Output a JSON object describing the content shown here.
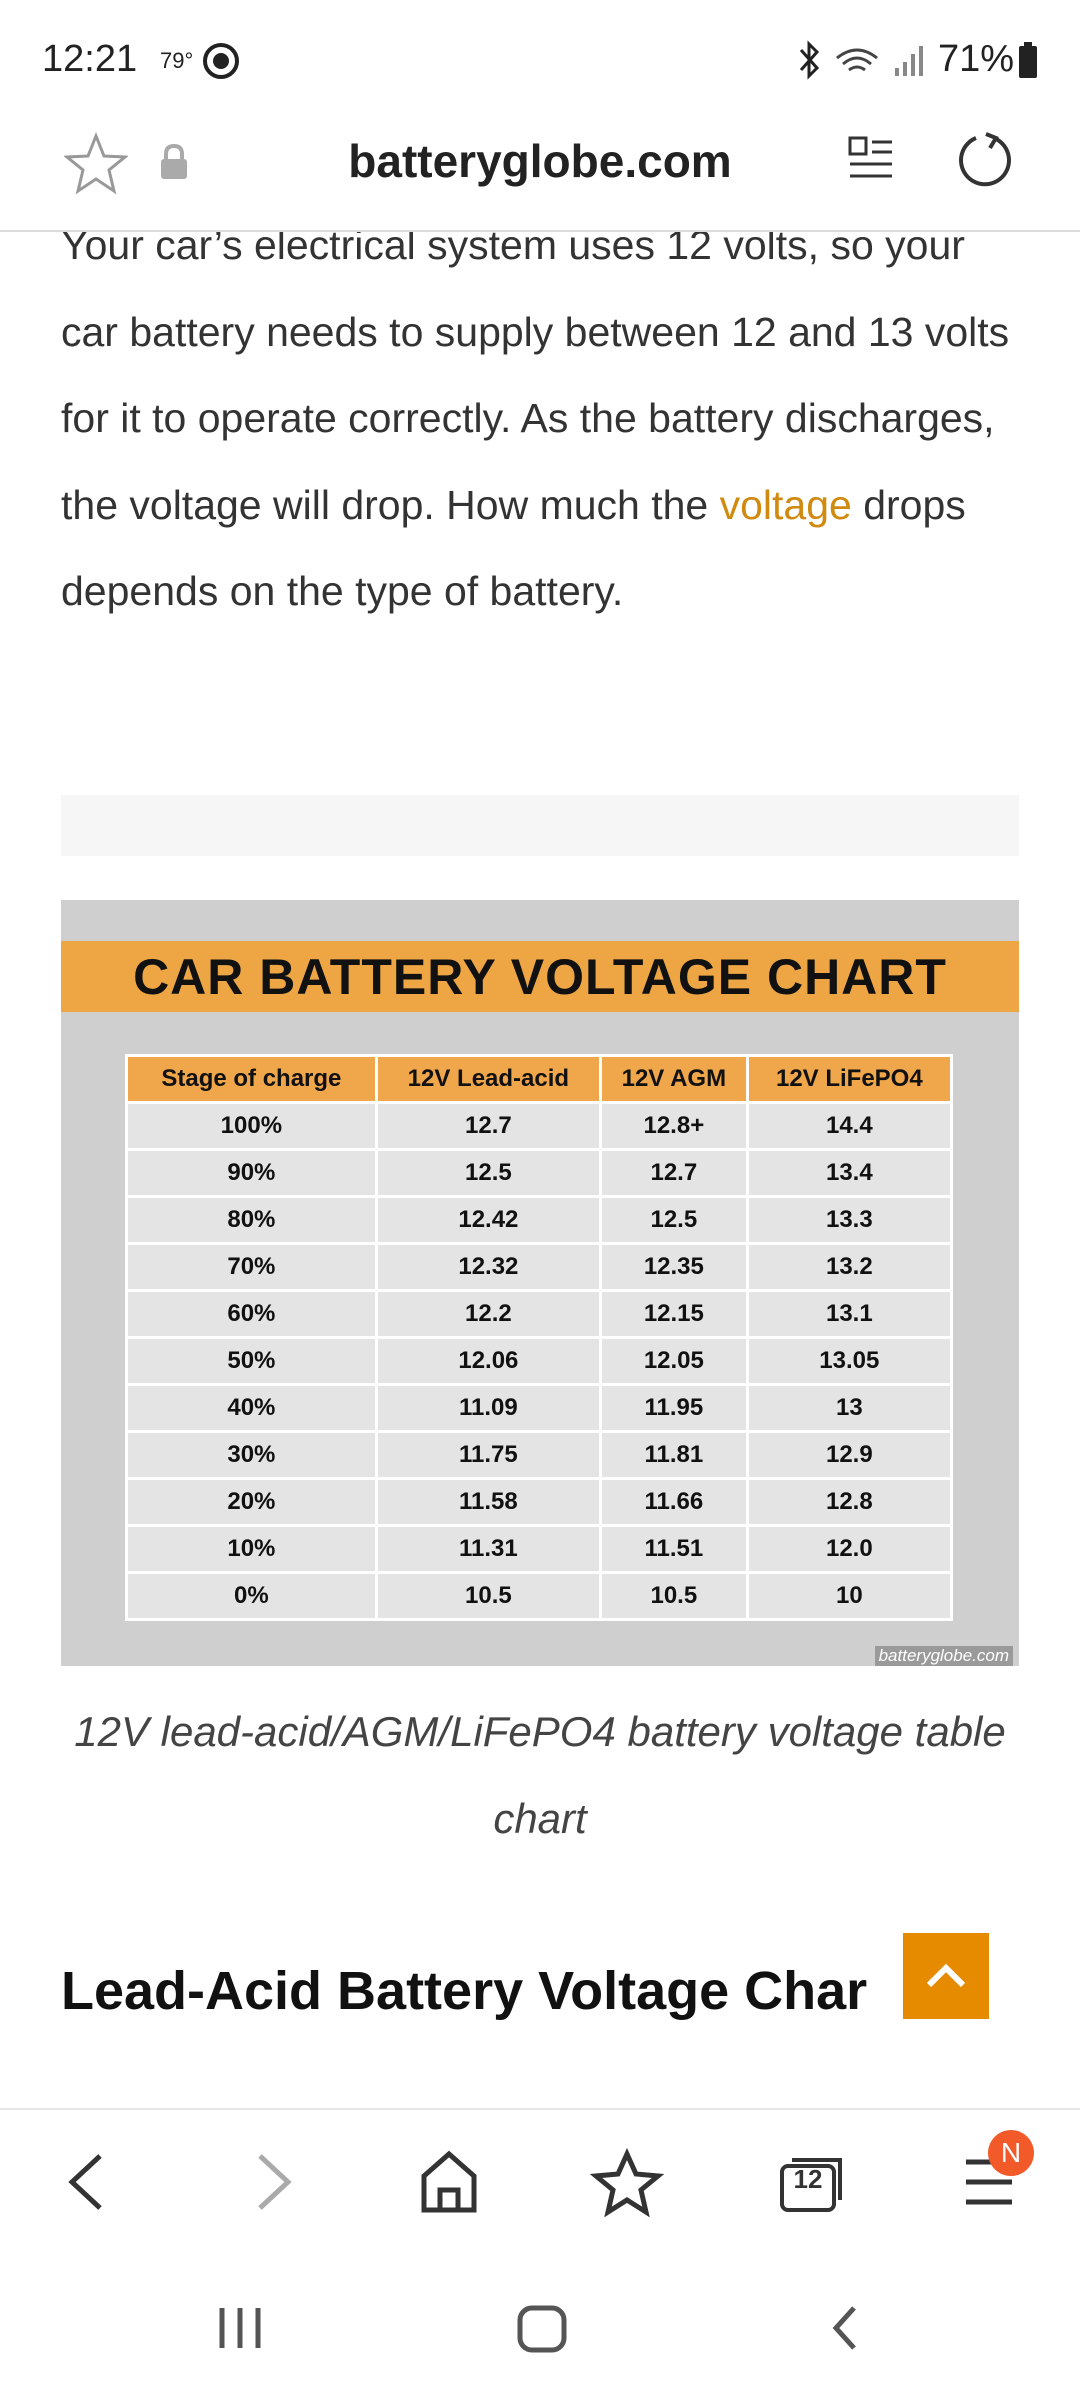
{
  "status_bar": {
    "time": "12:21",
    "temperature": "79°",
    "battery": "71%"
  },
  "address_bar": {
    "url": "batteryglobe.com"
  },
  "article": {
    "paragraph": {
      "before": "Your car’s electrical system uses 12 volts, so your car battery needs to supply between 12 and 13 volts for it to operate correctly. As the battery discharges, the voltage will drop. How much the ",
      "link": "voltage",
      "after": " drops depends on the type of battery."
    },
    "figure": {
      "title": "CAR BATTERY VOLTAGE CHART",
      "table": {
        "columns": [
          "Stage of charge",
          "12V Lead-acid",
          "12V AGM",
          "12V LiFePO4"
        ],
        "rows": [
          [
            "100%",
            "12.7",
            "12.8+",
            "14.4"
          ],
          [
            "90%",
            "12.5",
            "12.7",
            "13.4"
          ],
          [
            "80%",
            "12.42",
            "12.5",
            "13.3"
          ],
          [
            "70%",
            "12.32",
            "12.35",
            "13.2"
          ],
          [
            "60%",
            "12.2",
            "12.15",
            "13.1"
          ],
          [
            "50%",
            "12.06",
            "12.05",
            "13.05"
          ],
          [
            "40%",
            "11.09",
            "11.95",
            "13"
          ],
          [
            "30%",
            "11.75",
            "11.81",
            "12.9"
          ],
          [
            "20%",
            "11.58",
            "11.66",
            "12.8"
          ],
          [
            "10%",
            "11.31",
            "11.51",
            "12.0"
          ],
          [
            "0%",
            "10.5",
            "10.5",
            "10"
          ]
        ]
      },
      "watermark": "batteryglobe.com",
      "caption": "12V lead-acid/AGM/LiFePO4 battery voltage table chart"
    },
    "heading": "Lead-Acid Battery Voltage Char"
  },
  "bottom_nav": {
    "tab_count": "12",
    "menu_badge": "N"
  }
}
